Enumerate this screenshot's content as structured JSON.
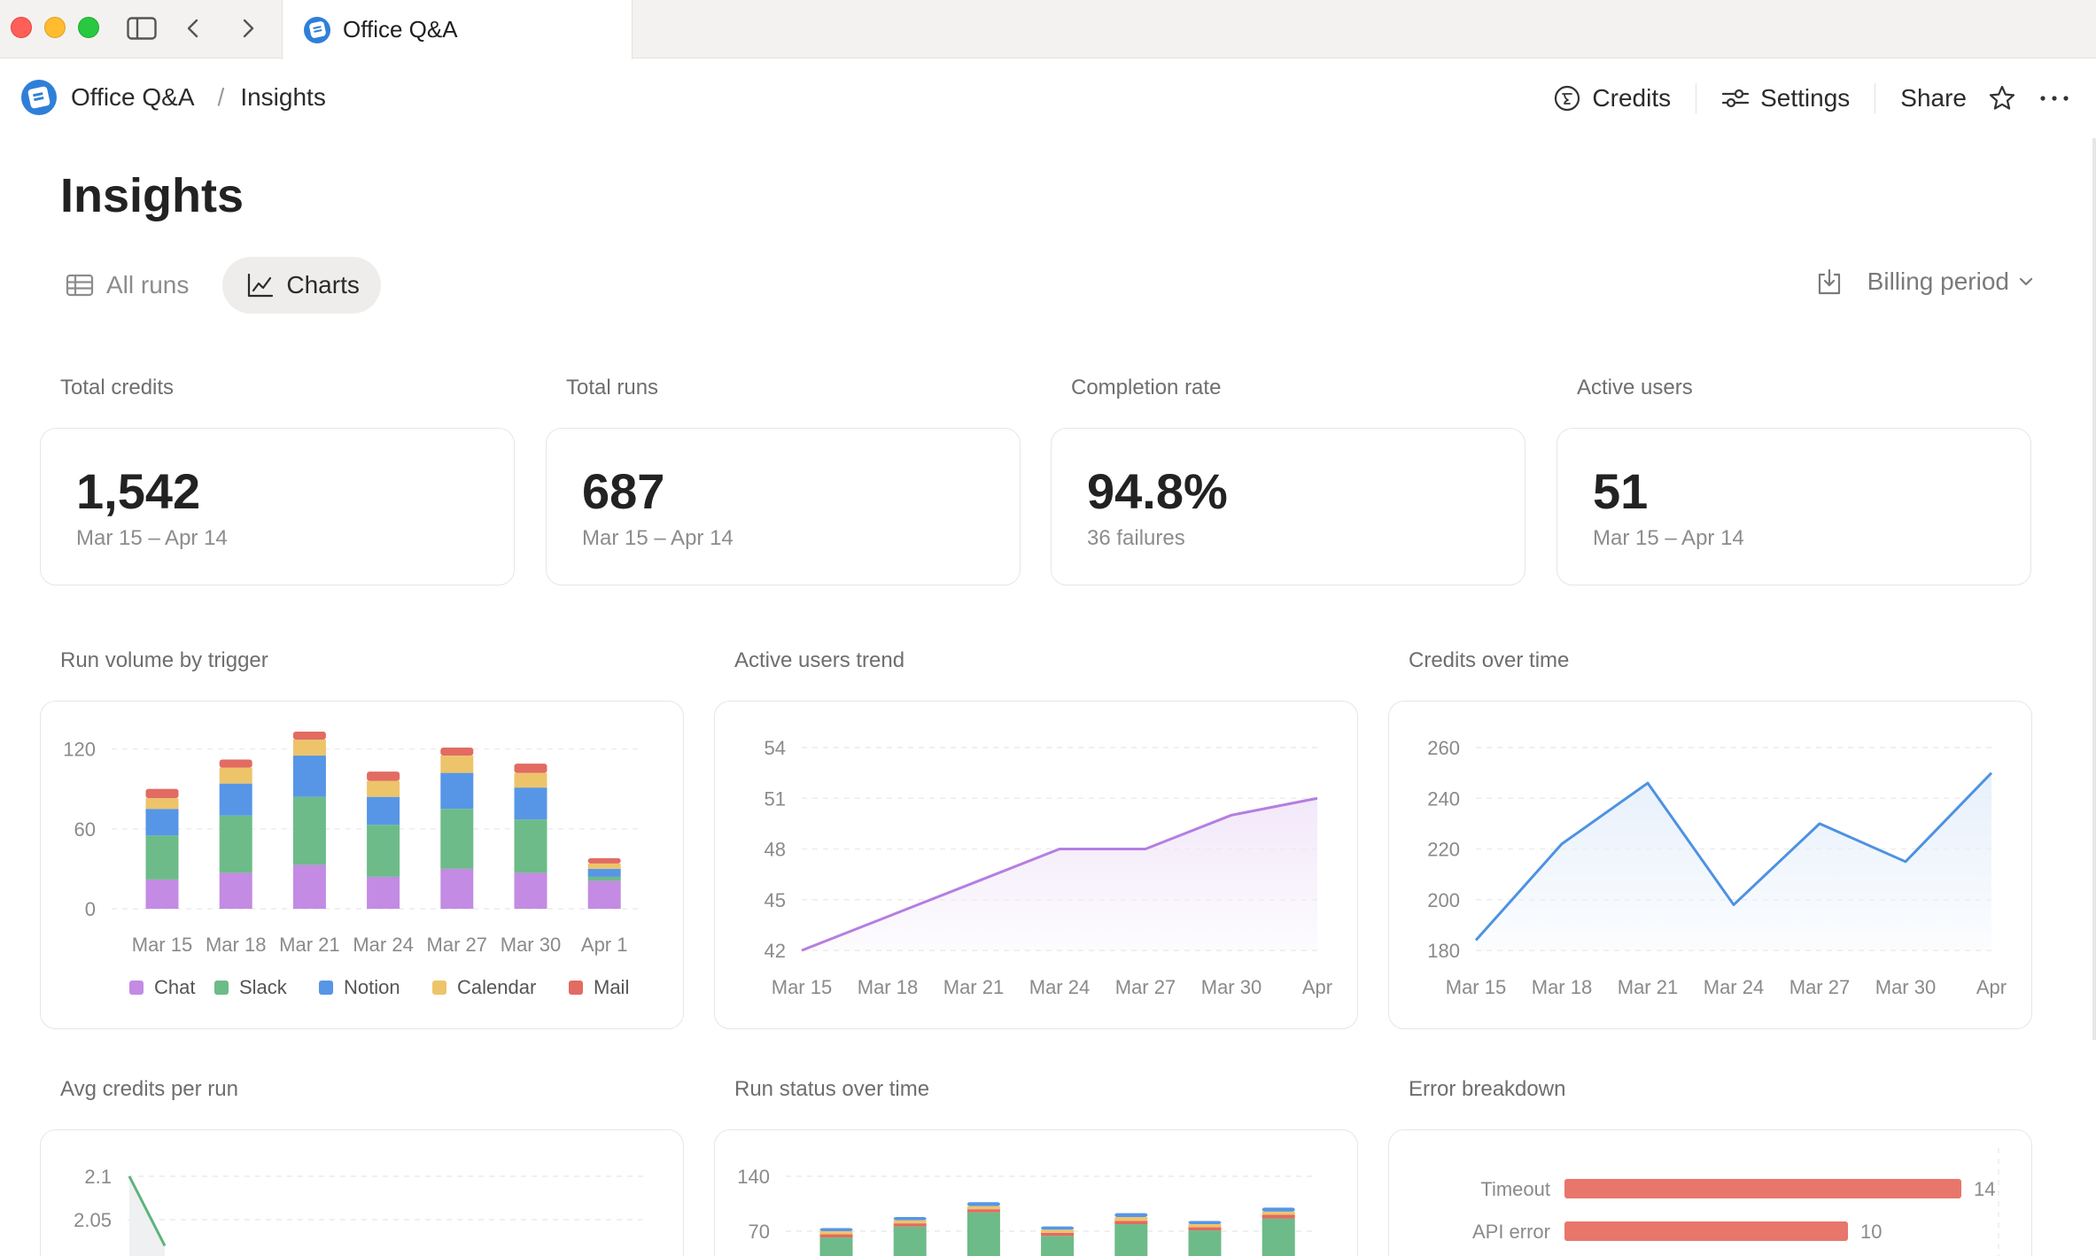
{
  "window": {
    "tab_title": "Office Q&A"
  },
  "breadcrumb": {
    "app": "Office Q&A",
    "separator": "/",
    "page": "Insights"
  },
  "nav": {
    "credits": "Credits",
    "settings": "Settings",
    "share": "Share"
  },
  "page": {
    "title": "Insights",
    "tabs": [
      {
        "label": "All runs",
        "active": false
      },
      {
        "label": "Charts",
        "active": true
      }
    ],
    "filter_label": "Billing period"
  },
  "kpis": [
    {
      "label": "Total credits",
      "value": "1,542",
      "sub": "Mar 15 – Apr 14"
    },
    {
      "label": "Total runs",
      "value": "687",
      "sub": "Mar 15 – Apr 14"
    },
    {
      "label": "Completion rate",
      "value": "94.8%",
      "sub": "36 failures"
    },
    {
      "label": "Active users",
      "value": "51",
      "sub": "Mar 15 – Apr 14"
    }
  ],
  "chart_labels": {
    "run_volume": "Run volume by trigger",
    "active_users": "Active users trend",
    "credits": "Credits over time",
    "avg_credits": "Avg credits per run",
    "run_status": "Run status over time",
    "errors": "Error breakdown"
  },
  "chart_data": [
    {
      "id": "run_volume",
      "type": "bar",
      "stacked": true,
      "categories": [
        "Mar 15",
        "Mar 18",
        "Mar 21",
        "Mar 24",
        "Mar 27",
        "Mar 30",
        "Apr 1"
      ],
      "yticks": [
        0,
        60,
        120
      ],
      "ylim": [
        0,
        125
      ],
      "series": [
        {
          "name": "Chat",
          "color": "#c38be3",
          "values": [
            22,
            27,
            33,
            24,
            30,
            27,
            21
          ]
        },
        {
          "name": "Slack",
          "color": "#6dbb88",
          "values": [
            33,
            43,
            51,
            39,
            45,
            40,
            3
          ]
        },
        {
          "name": "Notion",
          "color": "#5796e6",
          "values": [
            20,
            24,
            31,
            21,
            27,
            24,
            6
          ]
        },
        {
          "name": "Calendar",
          "color": "#edc46a",
          "values": [
            8,
            12,
            12,
            12,
            13,
            11,
            4
          ]
        },
        {
          "name": "Mail",
          "color": "#e26b62",
          "values": [
            7,
            6,
            6,
            7,
            6,
            7,
            4
          ]
        }
      ],
      "legend": "bottom"
    },
    {
      "id": "active_users",
      "type": "area",
      "color": "#b57ee0",
      "fill": "#f2e8f9",
      "x": [
        "Mar 15",
        "Mar 18",
        "Mar 21",
        "Mar 24",
        "Mar 27",
        "Mar 30",
        "Apr"
      ],
      "values": [
        42,
        44,
        46,
        48,
        48,
        50,
        51
      ],
      "yticks": [
        42,
        45,
        48,
        51,
        54
      ],
      "ylim": [
        42,
        54
      ]
    },
    {
      "id": "credits",
      "type": "area",
      "color": "#4d92e2",
      "fill": "#e7f0fb",
      "x": [
        "Mar 15",
        "Mar 18",
        "Mar 21",
        "Mar 24",
        "Mar 27",
        "Mar 30",
        "Apr"
      ],
      "values": [
        184,
        222,
        246,
        198,
        230,
        215,
        250
      ],
      "yticks": [
        180,
        200,
        220,
        240,
        260
      ],
      "ylim": [
        180,
        260
      ]
    },
    {
      "id": "avg_credits",
      "type": "line",
      "color": "#5fb27a",
      "yticks": [
        2.05,
        2.1
      ],
      "ylim": [
        2.0,
        2.1
      ],
      "values": [
        2.1,
        2.02
      ]
    },
    {
      "id": "run_status",
      "type": "bar",
      "stacked": true,
      "yticks": [
        70,
        140
      ],
      "ylim": [
        0,
        140
      ],
      "colors": [
        "#6dbb88",
        "#e26b62",
        "#edc46a",
        "#5796e6"
      ],
      "values": [
        [
          62,
          4,
          4,
          4
        ],
        [
          76,
          4,
          4,
          4
        ],
        [
          94,
          4,
          4,
          5
        ],
        [
          64,
          4,
          4,
          4
        ],
        [
          79,
          4,
          5,
          5
        ],
        [
          71,
          4,
          4,
          4
        ],
        [
          86,
          5,
          4,
          5
        ]
      ]
    },
    {
      "id": "errors",
      "type": "bar",
      "orientation": "horizontal",
      "color": "#e8766b",
      "categories": [
        "Timeout",
        "API error"
      ],
      "values": [
        14,
        10
      ],
      "xlim": [
        0,
        16
      ]
    }
  ]
}
